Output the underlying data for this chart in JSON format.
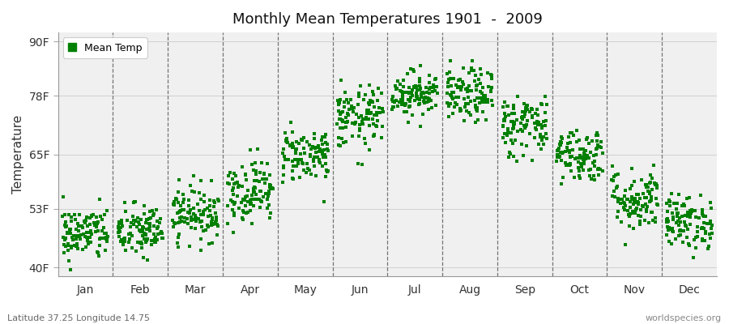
{
  "title": "Monthly Mean Temperatures 1901  -  2009",
  "ylabel": "Temperature",
  "xlabel": "",
  "bottom_left": "Latitude 37.25 Longitude 14.75",
  "bottom_right": "worldspecies.org",
  "legend_label": "Mean Temp",
  "dot_color": "#008000",
  "plot_bg_color": "#f0f0f0",
  "fig_bg_color": "#ffffff",
  "yticks": [
    40,
    53,
    65,
    78,
    90
  ],
  "ytick_labels": [
    "40F",
    "53F",
    "65F",
    "78F",
    "90F"
  ],
  "ylim": [
    38,
    92
  ],
  "months": [
    "Jan",
    "Feb",
    "Mar",
    "Apr",
    "May",
    "Jun",
    "Jul",
    "Aug",
    "Sep",
    "Oct",
    "Nov",
    "Dec"
  ],
  "month_centers": [
    1,
    2,
    3,
    4,
    5,
    6,
    7,
    8,
    9,
    10,
    11,
    12
  ],
  "monthly_mean": [
    47.5,
    48.0,
    52.0,
    57.0,
    65.0,
    73.0,
    78.5,
    78.0,
    71.5,
    65.0,
    55.0,
    50.0
  ],
  "monthly_std": [
    3.0,
    3.0,
    3.0,
    3.5,
    3.0,
    3.5,
    2.5,
    3.0,
    3.5,
    3.0,
    3.5,
    3.0
  ],
  "n_points": 109,
  "seed": 42
}
